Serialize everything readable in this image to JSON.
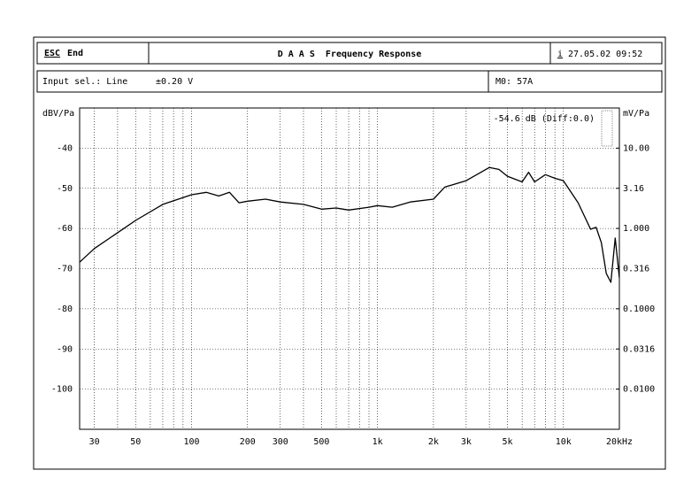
{
  "header": {
    "esc": "ESC",
    "end": "End",
    "title": "D A A S  Frequency Response",
    "info": "i",
    "datetime": "27.05.02 09:52"
  },
  "status": {
    "input": "Input sel.: Line",
    "level": "±0.20 V",
    "mode": "M0: 57A"
  },
  "chart_data": {
    "type": "line",
    "y_label": "dBV/Pa",
    "y2_label": "mV/Pa",
    "annotation": "-54.6 dB (Diff:0.0)",
    "x": [
      25,
      30,
      50,
      70,
      100,
      120,
      140,
      160,
      180,
      200,
      250,
      300,
      400,
      500,
      600,
      700,
      900,
      1000,
      1200,
      1500,
      2000,
      2300,
      3000,
      4000,
      4500,
      5000,
      6000,
      6500,
      7000,
      8000,
      9000,
      10000,
      12000,
      14000,
      15000,
      16000,
      17000,
      18000,
      19000,
      20000
    ],
    "series": [
      {
        "name": "Frequency response",
        "color": "#000000",
        "values": [
          -68.4,
          -65,
          -58,
          -54,
          -51.6,
          -51,
          -51.9,
          -51,
          -53.6,
          -53.2,
          -52.7,
          -53.4,
          -54,
          -55.2,
          -54.9,
          -55.4,
          -54.7,
          -54.3,
          -54.7,
          -53.4,
          -52.7,
          -49.7,
          -48.1,
          -44.8,
          -45.3,
          -47,
          -48.4,
          -46,
          -48.4,
          -46.6,
          -47.5,
          -48.1,
          -53.6,
          -60.2,
          -59.7,
          -63.5,
          -71.2,
          -73.4,
          -62.4,
          -72.3
        ]
      }
    ],
    "xlog": true,
    "xlim": [
      25,
      20000
    ],
    "xticks": [
      30,
      50,
      100,
      200,
      300,
      500,
      {
        "value": 1000,
        "label": "1k"
      },
      {
        "value": 2000,
        "label": "2k"
      },
      {
        "value": 3000,
        "label": "3k"
      },
      {
        "value": 5000,
        "label": "5k"
      },
      {
        "value": 10000,
        "label": "10k"
      },
      {
        "value": 20000,
        "label": "20kHz"
      }
    ],
    "xminor": [
      40,
      60,
      70,
      80,
      90,
      400,
      600,
      700,
      800,
      900,
      4000,
      6000,
      7000,
      8000,
      9000
    ],
    "ylim": [
      -110,
      -30
    ],
    "yticks": [
      -40,
      -50,
      -60,
      -70,
      -80,
      -90,
      -100
    ],
    "y2log": true,
    "y2lim": [
      0.00316,
      31.6
    ],
    "y2ticks": [
      {
        "value": 10,
        "label": "10.00"
      },
      3.16,
      {
        "value": 1,
        "label": "1.000"
      },
      0.316,
      {
        "value": 0.1,
        "label": "0.1000"
      },
      0.0316,
      {
        "value": 0.01,
        "label": "0.0100"
      }
    ],
    "grid": true
  }
}
